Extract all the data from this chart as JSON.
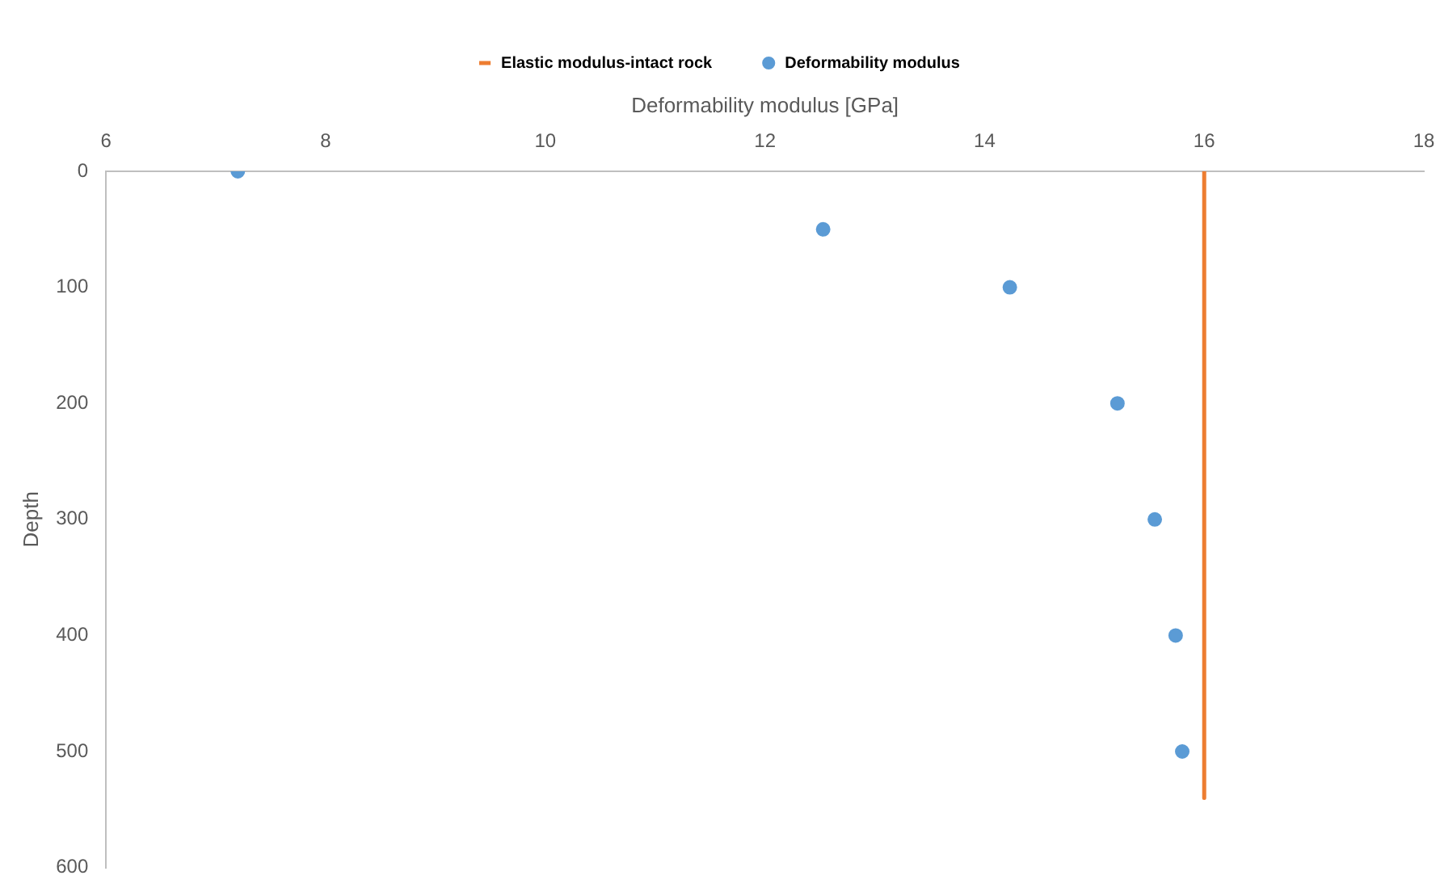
{
  "chart_data": {
    "type": "scatter",
    "xlabel": "Deformability modulus [GPa]",
    "ylabel": "Depth",
    "xlim": [
      6,
      18
    ],
    "xticks": [
      6,
      8,
      10,
      12,
      14,
      16,
      18
    ],
    "ylim": [
      600,
      0
    ],
    "yticks": [
      0,
      100,
      200,
      300,
      400,
      500,
      600
    ],
    "grid": false,
    "legend": "top",
    "series": [
      {
        "name": "Elastic modulus-intact rock",
        "type": "line",
        "color": "#ed7d31",
        "x": [
          16,
          16
        ],
        "values": [
          0,
          540
        ],
        "line_style": "solid",
        "marker": "none"
      },
      {
        "name": "Deformability modulus",
        "marker": "circle",
        "color": "#5b9bd5",
        "x": [
          7.2,
          12.53,
          14.23,
          15.21,
          15.55,
          15.74,
          15.8
        ],
        "values": [
          0,
          50,
          100,
          200,
          300,
          400,
          500
        ]
      }
    ]
  }
}
